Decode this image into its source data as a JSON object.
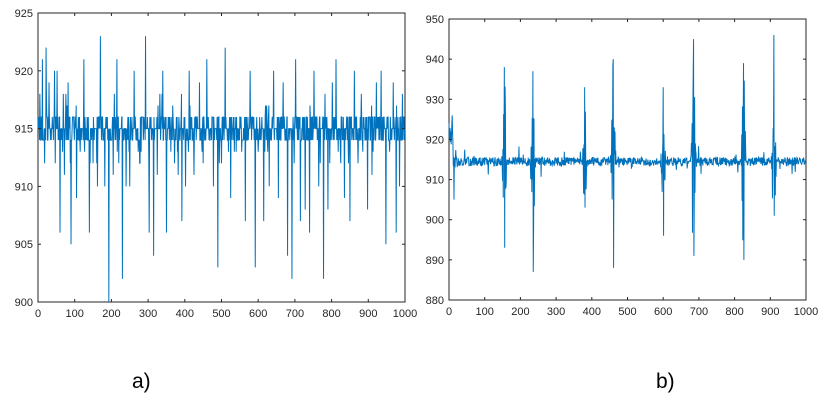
{
  "figure": {
    "colors": {
      "line": "#0072BD",
      "axis": "#262626",
      "background": "#ffffff"
    }
  },
  "chart_data": [
    {
      "type": "line",
      "panel_label": "a)",
      "xlim": [
        0,
        1000
      ],
      "ylim": [
        900,
        925
      ],
      "xticks": [
        0,
        100,
        200,
        300,
        400,
        500,
        600,
        700,
        800,
        900,
        1000
      ],
      "yticks": [
        900,
        905,
        910,
        915,
        920,
        925
      ],
      "grid": false,
      "baseline": 915,
      "noise_levels": [
        914,
        915,
        916
      ],
      "spikes": [
        {
          "x": 5,
          "y": 918
        },
        {
          "x": 12,
          "y": 921
        },
        {
          "x": 18,
          "y": 912
        },
        {
          "x": 22,
          "y": 922
        },
        {
          "x": 30,
          "y": 919
        },
        {
          "x": 45,
          "y": 920
        },
        {
          "x": 52,
          "y": 920
        },
        {
          "x": 60,
          "y": 906
        },
        {
          "x": 72,
          "y": 911
        },
        {
          "x": 82,
          "y": 919
        },
        {
          "x": 90,
          "y": 905
        },
        {
          "x": 105,
          "y": 909
        },
        {
          "x": 115,
          "y": 913
        },
        {
          "x": 125,
          "y": 921
        },
        {
          "x": 140,
          "y": 906
        },
        {
          "x": 150,
          "y": 912
        },
        {
          "x": 162,
          "y": 910
        },
        {
          "x": 170,
          "y": 923
        },
        {
          "x": 182,
          "y": 910
        },
        {
          "x": 193,
          "y": 900
        },
        {
          "x": 205,
          "y": 911
        },
        {
          "x": 215,
          "y": 921
        },
        {
          "x": 230,
          "y": 902
        },
        {
          "x": 240,
          "y": 910
        },
        {
          "x": 250,
          "y": 910
        },
        {
          "x": 262,
          "y": 920
        },
        {
          "x": 278,
          "y": 912
        },
        {
          "x": 293,
          "y": 923
        },
        {
          "x": 303,
          "y": 906
        },
        {
          "x": 315,
          "y": 904
        },
        {
          "x": 325,
          "y": 911
        },
        {
          "x": 340,
          "y": 920
        },
        {
          "x": 350,
          "y": 906
        },
        {
          "x": 362,
          "y": 913
        },
        {
          "x": 372,
          "y": 912
        },
        {
          "x": 382,
          "y": 911
        },
        {
          "x": 392,
          "y": 907
        },
        {
          "x": 402,
          "y": 910
        },
        {
          "x": 412,
          "y": 920
        },
        {
          "x": 425,
          "y": 911
        },
        {
          "x": 440,
          "y": 919
        },
        {
          "x": 450,
          "y": 912
        },
        {
          "x": 460,
          "y": 921
        },
        {
          "x": 478,
          "y": 910
        },
        {
          "x": 490,
          "y": 903
        },
        {
          "x": 500,
          "y": 912
        },
        {
          "x": 510,
          "y": 922
        },
        {
          "x": 525,
          "y": 909
        },
        {
          "x": 540,
          "y": 913
        },
        {
          "x": 555,
          "y": 913
        },
        {
          "x": 565,
          "y": 907
        },
        {
          "x": 578,
          "y": 920
        },
        {
          "x": 592,
          "y": 903
        },
        {
          "x": 600,
          "y": 913
        },
        {
          "x": 615,
          "y": 907
        },
        {
          "x": 630,
          "y": 910
        },
        {
          "x": 642,
          "y": 920
        },
        {
          "x": 655,
          "y": 909
        },
        {
          "x": 668,
          "y": 919
        },
        {
          "x": 680,
          "y": 904
        },
        {
          "x": 692,
          "y": 902
        },
        {
          "x": 702,
          "y": 921
        },
        {
          "x": 715,
          "y": 907
        },
        {
          "x": 728,
          "y": 908
        },
        {
          "x": 740,
          "y": 906
        },
        {
          "x": 752,
          "y": 920
        },
        {
          "x": 765,
          "y": 910
        },
        {
          "x": 778,
          "y": 902
        },
        {
          "x": 790,
          "y": 908
        },
        {
          "x": 802,
          "y": 919
        },
        {
          "x": 812,
          "y": 921
        },
        {
          "x": 825,
          "y": 912
        },
        {
          "x": 835,
          "y": 909
        },
        {
          "x": 850,
          "y": 907
        },
        {
          "x": 862,
          "y": 920
        },
        {
          "x": 872,
          "y": 912
        },
        {
          "x": 885,
          "y": 913
        },
        {
          "x": 898,
          "y": 908
        },
        {
          "x": 910,
          "y": 911
        },
        {
          "x": 922,
          "y": 919
        },
        {
          "x": 935,
          "y": 920
        },
        {
          "x": 948,
          "y": 905
        },
        {
          "x": 958,
          "y": 913
        },
        {
          "x": 968,
          "y": 919
        },
        {
          "x": 976,
          "y": 906
        },
        {
          "x": 985,
          "y": 910
        },
        {
          "x": 993,
          "y": 918
        }
      ]
    },
    {
      "type": "line",
      "panel_label": "b)",
      "xlim": [
        0,
        1000
      ],
      "ylim": [
        880,
        950
      ],
      "xticks": [
        0,
        100,
        200,
        300,
        400,
        500,
        600,
        700,
        800,
        900,
        1000
      ],
      "yticks": [
        880,
        890,
        900,
        910,
        920,
        930,
        940,
        950
      ],
      "grid": false,
      "baseline": 914.5,
      "start_segment": [
        {
          "x": 0,
          "y": 924
        },
        {
          "x": 5,
          "y": 922
        },
        {
          "x": 9,
          "y": 926
        },
        {
          "x": 14,
          "y": 905
        },
        {
          "x": 18,
          "y": 916
        },
        {
          "x": 24,
          "y": 914
        }
      ],
      "bursts": [
        {
          "x": 155,
          "max": 938,
          "min": 893
        },
        {
          "x": 235,
          "max": 937,
          "min": 887
        },
        {
          "x": 380,
          "max": 933,
          "min": 903
        },
        {
          "x": 460,
          "max": 940,
          "min": 888
        },
        {
          "x": 600,
          "max": 933,
          "min": 896
        },
        {
          "x": 685,
          "max": 945,
          "min": 891
        },
        {
          "x": 825,
          "max": 939,
          "min": 890
        },
        {
          "x": 910,
          "max": 946,
          "min": 901
        }
      ]
    }
  ]
}
